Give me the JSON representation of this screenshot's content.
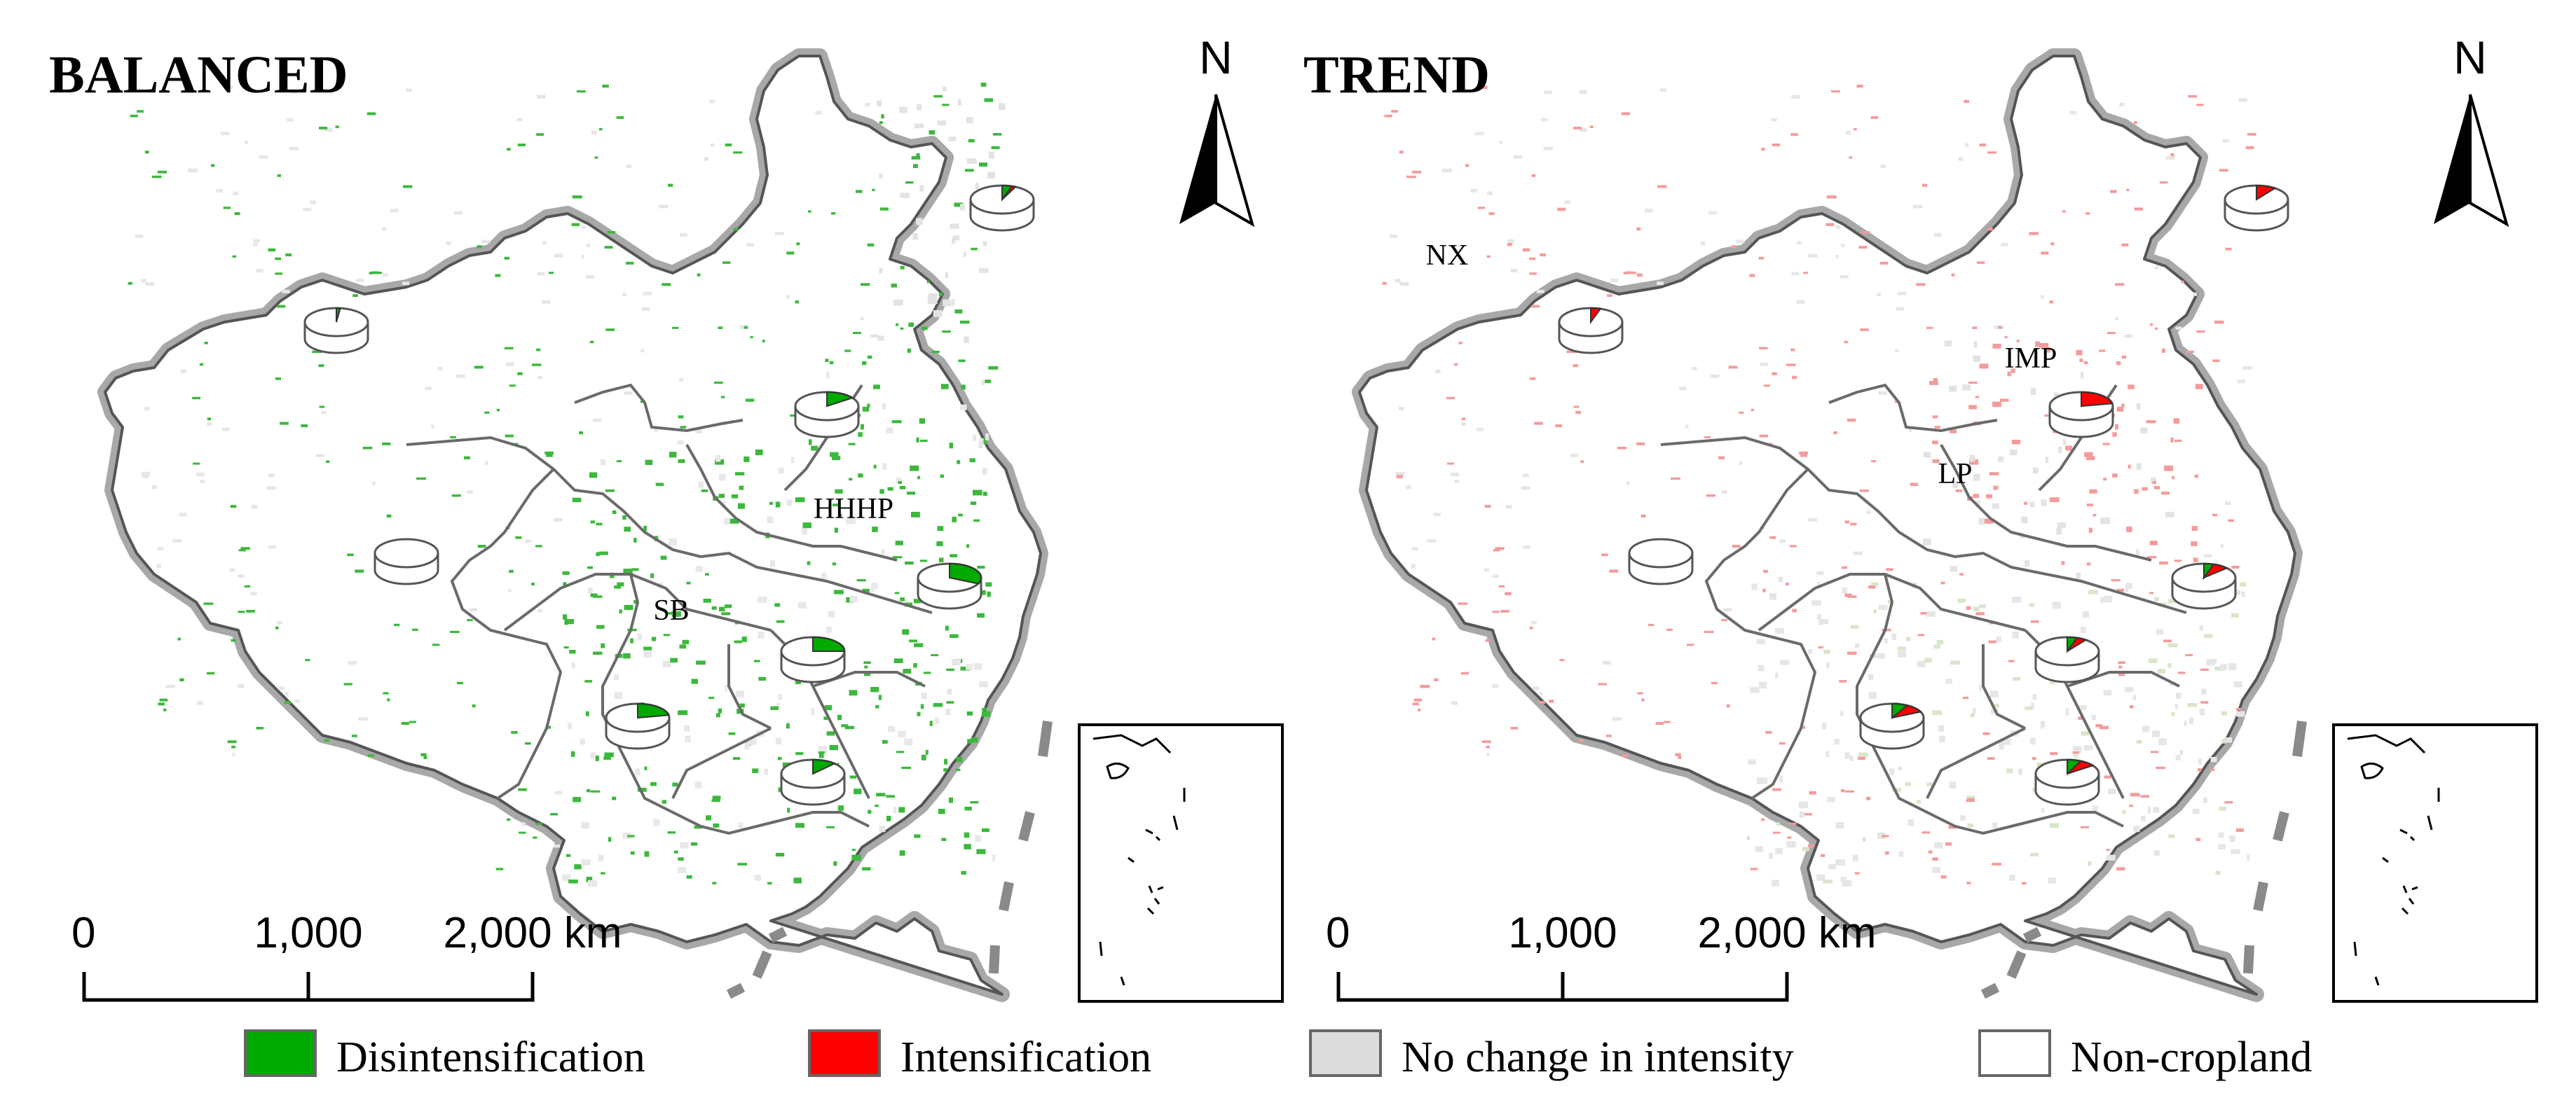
{
  "panels": [
    {
      "title": "BALANCED",
      "labels": [
        "HHHP",
        "SB"
      ],
      "north": "N",
      "scale": {
        "ticks": [
          "0",
          "1,000",
          "2,000 km"
        ]
      },
      "dominant_color": "#3cb83c",
      "pie_stats": [
        {
          "green": 0.05,
          "red": 0.02
        },
        {
          "green": 0.02,
          "red": 0.0
        },
        {
          "green": 0.15,
          "red": 0.0
        },
        {
          "green": 0.0,
          "red": 0.0
        },
        {
          "green": 0.32,
          "red": 0.0
        },
        {
          "green": 0.25,
          "red": 0.0
        },
        {
          "green": 0.22,
          "red": 0.0
        },
        {
          "green": 0.12,
          "red": 0.0
        }
      ]
    },
    {
      "title": "TREND",
      "labels": [
        "NX",
        "IMP",
        "LP"
      ],
      "north": "N",
      "scale": {
        "ticks": [
          "0",
          "1,000",
          "2,000 km"
        ]
      },
      "dominant_color": "#f49b9b",
      "pie_stats": [
        {
          "green": 0.0,
          "red": 0.1
        },
        {
          "green": 0.0,
          "red": 0.05
        },
        {
          "green": 0.0,
          "red": 0.22
        },
        {
          "green": 0.0,
          "red": 0.0
        },
        {
          "green": 0.05,
          "red": 0.08
        },
        {
          "green": 0.05,
          "red": 0.05
        },
        {
          "green": 0.08,
          "red": 0.1
        },
        {
          "green": 0.07,
          "red": 0.08
        }
      ]
    }
  ],
  "legend": [
    {
      "label": "Disintensification",
      "color": "#00aa00"
    },
    {
      "label": "Intensification",
      "color": "#ff0000"
    },
    {
      "label": "No change in intensity",
      "color": "#dcdcdc"
    },
    {
      "label": "Non-cropland",
      "color": "#ffffff"
    }
  ]
}
